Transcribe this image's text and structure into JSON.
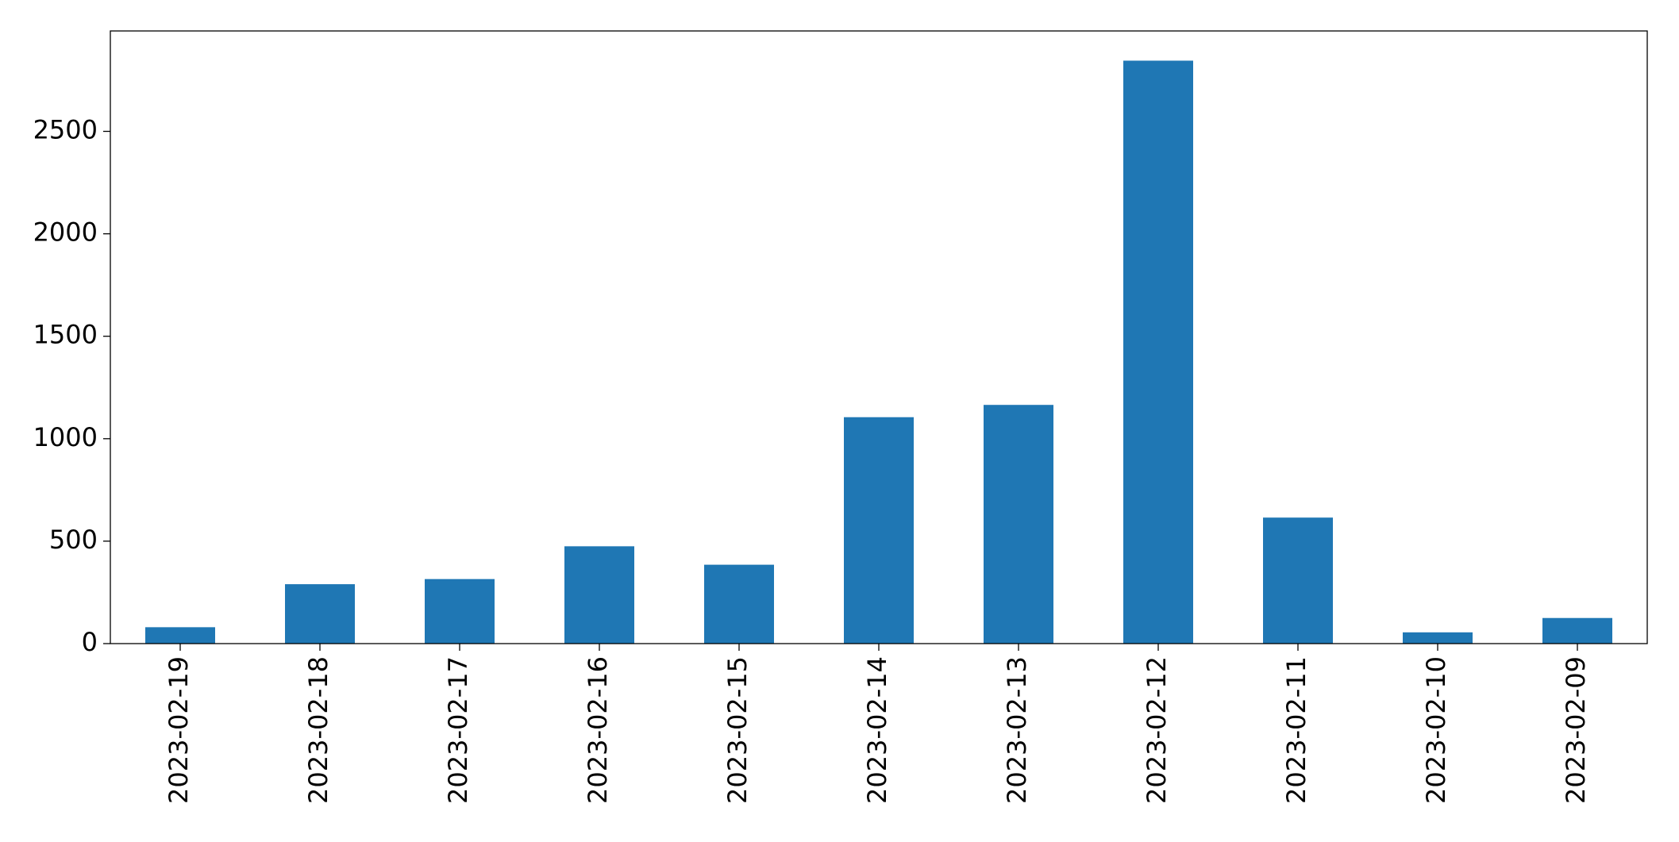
{
  "chart_data": {
    "type": "bar",
    "categories": [
      "2023-02-19",
      "2023-02-18",
      "2023-02-17",
      "2023-02-16",
      "2023-02-15",
      "2023-02-14",
      "2023-02-13",
      "2023-02-12",
      "2023-02-11",
      "2023-02-10",
      "2023-02-09"
    ],
    "values": [
      80,
      290,
      315,
      475,
      385,
      1105,
      1165,
      2845,
      615,
      55,
      125
    ],
    "color": "#1f77b4",
    "ylim": [
      0,
      2990
    ],
    "yticks": [
      0,
      500,
      1000,
      1500,
      2000,
      2500
    ],
    "grid": false
  }
}
